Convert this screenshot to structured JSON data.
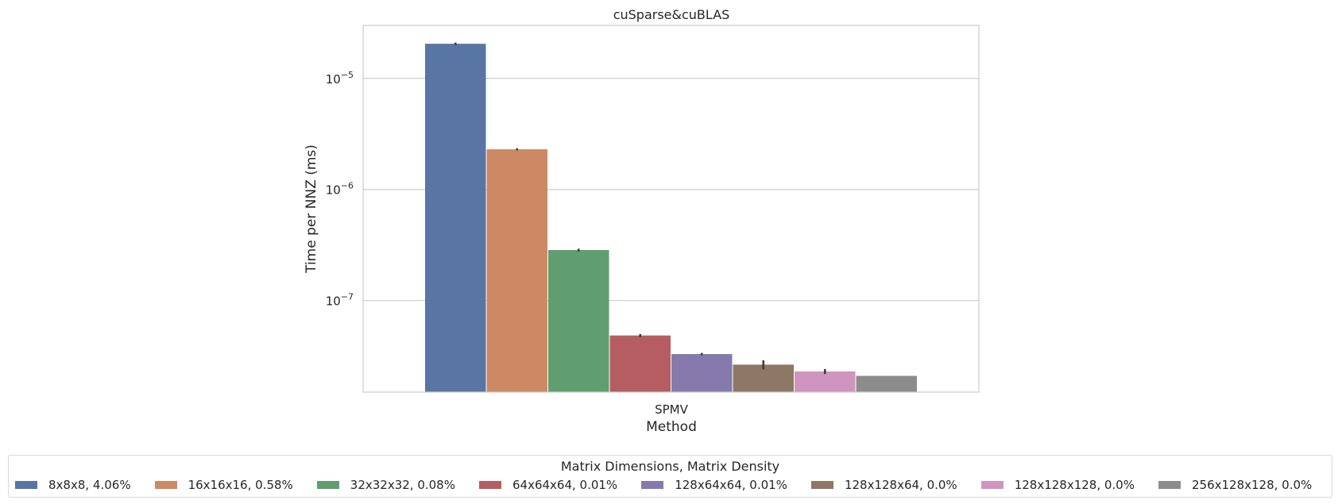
{
  "chart_data": {
    "type": "bar",
    "title": "cuSparse&cuBLAS",
    "xlabel": "Method",
    "ylabel": "Time per NNZ (ms)",
    "yscale": "log",
    "ylim": [
      1.5e-08,
      3e-05
    ],
    "yticks": [
      {
        "value": 1e-05,
        "base": "10",
        "exp": "−5"
      },
      {
        "value": 1e-06,
        "base": "10",
        "exp": "−6"
      },
      {
        "value": 1e-07,
        "base": "10",
        "exp": "−7"
      }
    ],
    "categories": [
      "SPMV"
    ],
    "grid": true,
    "legend_title": "Matrix Dimensions, Matrix Density",
    "legend_position": "bottom",
    "series": [
      {
        "name": "8x8x8, 4.06%",
        "values": [
          2.05e-05
        ],
        "err": [
          5e-07
        ],
        "color": "#5875a4"
      },
      {
        "name": "16x16x16, 0.58%",
        "values": [
          2.3e-06
        ],
        "err": [
          5e-08
        ],
        "color": "#cc8963"
      },
      {
        "name": "32x32x32, 0.08%",
        "values": [
          2.85e-07
        ],
        "err": [
          8e-09
        ],
        "color": "#5f9e6e"
      },
      {
        "name": "64x64x64, 0.01%",
        "values": [
          4.85e-08
        ],
        "err": [
          1.5e-09
        ],
        "color": "#b55d60"
      },
      {
        "name": "128x64x64, 0.01%",
        "values": [
          3.3e-08
        ],
        "err": [
          8e-10
        ],
        "color": "#857aab"
      },
      {
        "name": "128x128x64, 0.0%",
        "values": [
          2.65e-08
        ],
        "err": [
          2.5e-09
        ],
        "color": "#8d7866"
      },
      {
        "name": "128x128x128, 0.0%",
        "values": [
          2.3e-08
        ],
        "err": [
          1.2e-09
        ],
        "color": "#d095bf"
      },
      {
        "name": "256x128x128, 0.0%",
        "values": [
          2.1e-08
        ],
        "err": [
          0
        ],
        "color": "#8c8c8c"
      }
    ]
  }
}
